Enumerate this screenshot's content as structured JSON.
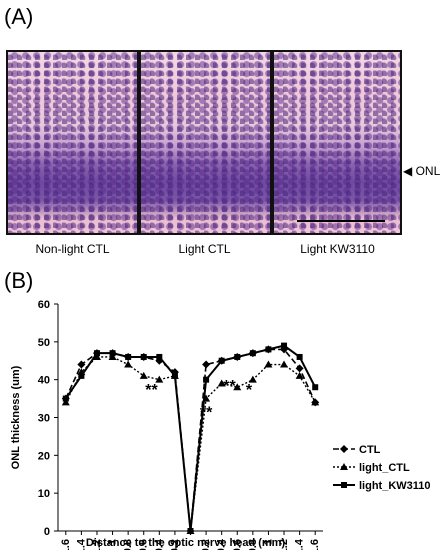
{
  "panel_a": {
    "label": "(A)",
    "images": [
      {
        "caption": "Non-light CTL"
      },
      {
        "caption": "Light CTL"
      },
      {
        "caption": "Light KW3110"
      }
    ],
    "marker": "◀ ONL"
  },
  "panel_b": {
    "label": "(B)"
  },
  "chart_data": {
    "type": "line",
    "ylabel": "ONL thickness (um)",
    "xlabel": "Distance to the optic nerve head (mm)",
    "ylim": [
      0,
      60
    ],
    "yticks": [
      0,
      10,
      20,
      30,
      40,
      50,
      60
    ],
    "x_tick_labels": [
      "1.6",
      "1.4",
      "1.2",
      "1",
      "0.8",
      "0.6",
      "0.4",
      "0.2",
      "",
      "0.2",
      "0.4",
      "0.6",
      "0.8",
      "1",
      "1.2",
      "1.4",
      "1.6"
    ],
    "x": [
      -1.6,
      -1.4,
      -1.2,
      -1.0,
      -0.8,
      -0.6,
      -0.4,
      -0.2,
      0,
      0.2,
      0.4,
      0.6,
      0.8,
      1.0,
      1.2,
      1.4,
      1.6
    ],
    "series": [
      {
        "name": "CTL",
        "values": [
          35,
          44,
          47,
          47,
          46,
          46,
          45,
          42,
          0,
          44,
          45,
          46,
          47,
          48,
          48,
          43,
          34
        ]
      },
      {
        "name": "light_CTL",
        "values": [
          34,
          42,
          46,
          46,
          44,
          41,
          40,
          41,
          0,
          35,
          39,
          38,
          40,
          44,
          44,
          41,
          34
        ]
      },
      {
        "name": "light_KW3110",
        "values": [
          35,
          41,
          47,
          47,
          46,
          46,
          46,
          41,
          0,
          40,
          45,
          46,
          47,
          48,
          49,
          46,
          38
        ]
      }
    ],
    "annotations": [
      {
        "text": "**",
        "x": -0.5,
        "y": 36
      },
      {
        "text": "**",
        "x": 0.2,
        "y": 30
      },
      {
        "text": "**",
        "x": 0.5,
        "y": 37
      },
      {
        "text": "*",
        "x": 0.75,
        "y": 36
      }
    ],
    "legend_position": "right"
  }
}
